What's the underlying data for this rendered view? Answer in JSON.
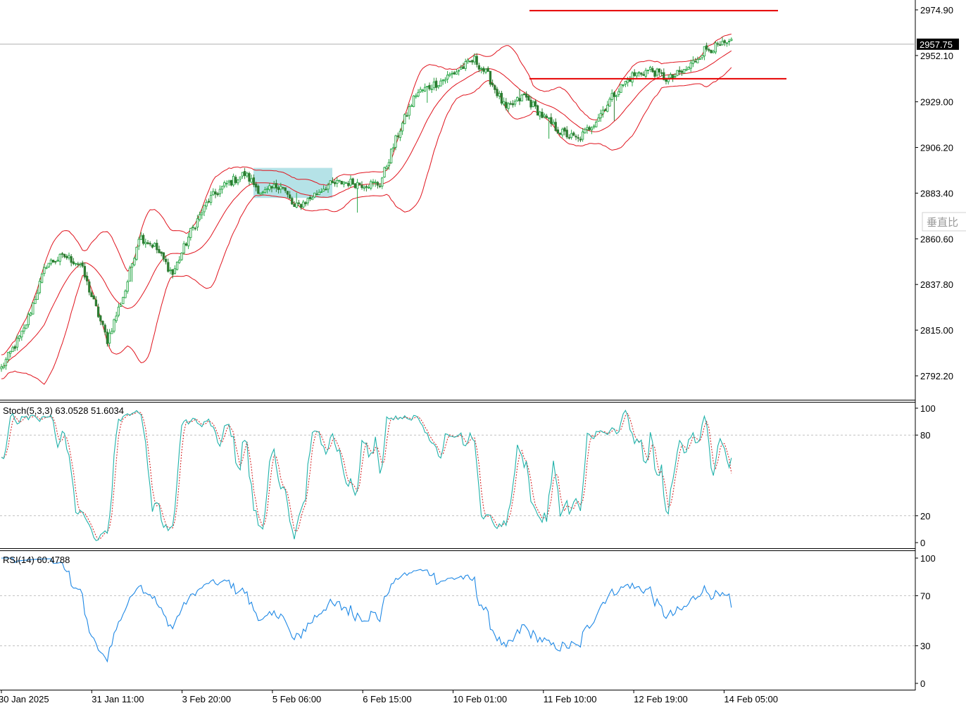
{
  "chart_data": [
    {
      "type": "candlestick",
      "panel": "price",
      "indicators": [
        "Bollinger Bands"
      ],
      "ylim": [
        2780,
        2980
      ],
      "y_ticks": [
        "2974.90",
        "2952.10",
        "2929.00",
        "2906.20",
        "2883.40",
        "2860.60",
        "2837.80",
        "2815.00",
        "2792.20"
      ],
      "current_price": "2957.75",
      "horizontal_lines": [
        2974.5,
        2940.5
      ],
      "highlight_zone": {
        "y_from": 2881,
        "y_to": 2896
      },
      "x_labels": [
        "30 Jan 2025",
        "31 Jan 11:00",
        "3 Feb 20:00",
        "5 Feb 06:00",
        "6 Feb 15:00",
        "10 Feb 01:00",
        "11 Feb 10:00",
        "12 Feb 19:00",
        "14 Feb 05:00"
      ],
      "close_waypoints": [
        [
          0,
          2796
        ],
        [
          10,
          2815
        ],
        [
          20,
          2848
        ],
        [
          28,
          2852
        ],
        [
          35,
          2848
        ],
        [
          40,
          2832
        ],
        [
          47,
          2810
        ],
        [
          55,
          2835
        ],
        [
          61,
          2862
        ],
        [
          68,
          2857
        ],
        [
          76,
          2843
        ],
        [
          84,
          2864
        ],
        [
          92,
          2880
        ],
        [
          100,
          2888
        ],
        [
          108,
          2893
        ],
        [
          116,
          2883
        ],
        [
          124,
          2888
        ],
        [
          130,
          2876
        ],
        [
          136,
          2880
        ],
        [
          144,
          2887
        ],
        [
          152,
          2889
        ],
        [
          160,
          2888
        ],
        [
          168,
          2888
        ],
        [
          176,
          2913
        ],
        [
          184,
          2933
        ],
        [
          196,
          2940
        ],
        [
          210,
          2950
        ],
        [
          216,
          2942
        ],
        [
          224,
          2925
        ],
        [
          232,
          2932
        ],
        [
          240,
          2922
        ],
        [
          248,
          2914
        ],
        [
          256,
          2910
        ],
        [
          264,
          2920
        ],
        [
          272,
          2933
        ],
        [
          280,
          2942
        ],
        [
          288,
          2945
        ],
        [
          296,
          2940
        ],
        [
          304,
          2945
        ],
        [
          312,
          2955
        ],
        [
          320,
          2957
        ],
        [
          324,
          2958
        ]
      ]
    },
    {
      "type": "line",
      "panel": "stochastic",
      "label": "Stoch(5,3,3) 63.0528 51.6034",
      "main_value": 63.0528,
      "signal_value": 51.6034,
      "ylim": [
        0,
        100
      ],
      "y_ticks": [
        "100",
        "80",
        "20",
        "0"
      ],
      "levels": [
        80,
        20
      ]
    },
    {
      "type": "line",
      "panel": "rsi",
      "label": "RSI(14) 60.4788",
      "value": 60.4788,
      "ylim": [
        0,
        100
      ],
      "y_ticks": [
        "100",
        "70",
        "30",
        "0"
      ],
      "levels": [
        70,
        30
      ]
    }
  ],
  "watermark": "垂直比",
  "colors": {
    "bull": "#26a645",
    "bear": "#2e7d32",
    "band": "#e0141e",
    "level_line": "#e60000",
    "stoch_main": "#20b2aa",
    "stoch_signal": "#d11a1a",
    "rsi": "#1e88e5",
    "zone": "#a8dde3",
    "grid_dash": "#c0c0c0"
  }
}
